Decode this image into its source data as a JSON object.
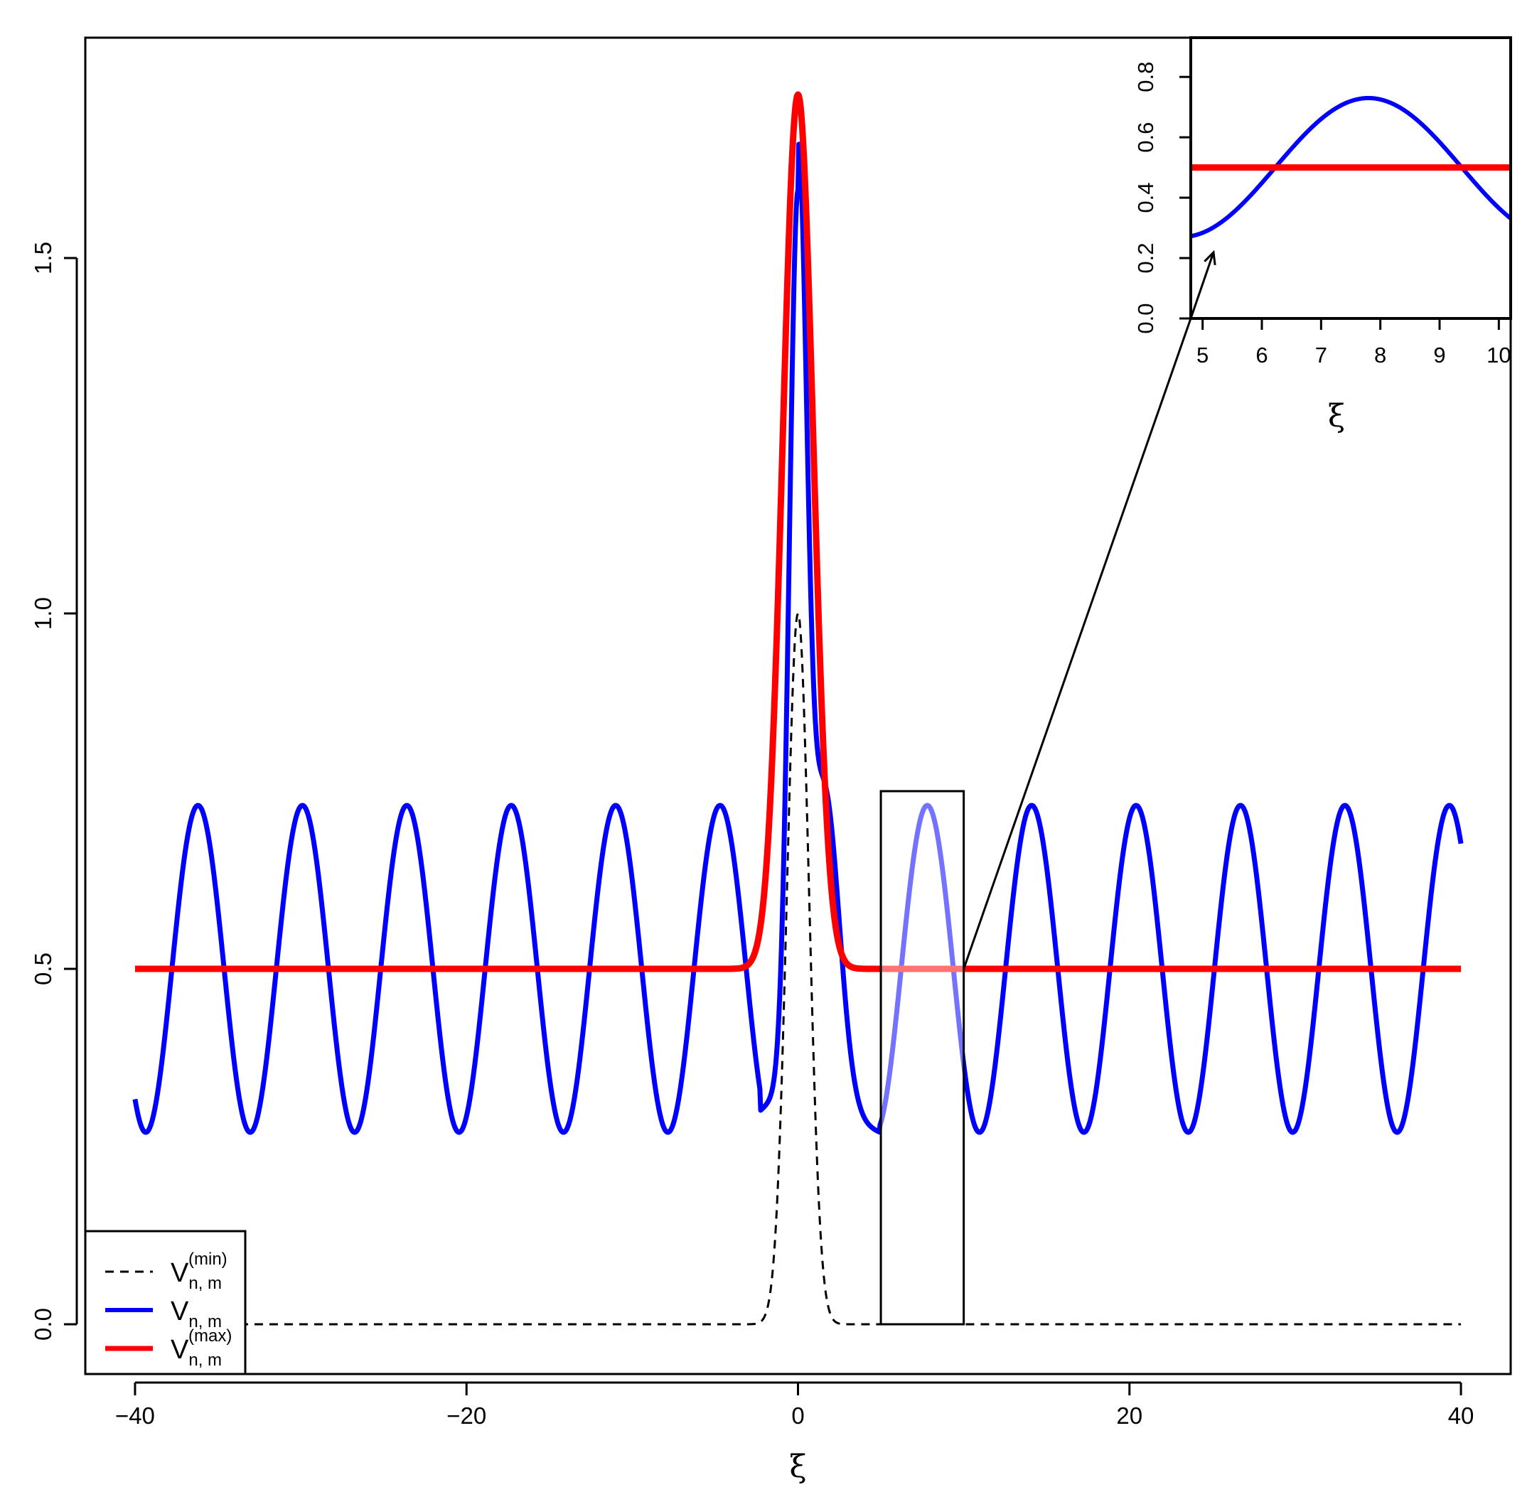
{
  "chart_data": {
    "type": "line",
    "xlabel": "ξ",
    "ylabel": "",
    "xlim": [
      -43,
      43
    ],
    "ylim": [
      -0.07,
      1.81
    ],
    "x_ticks": [
      -40,
      -20,
      0,
      20,
      40
    ],
    "x_tick_labels": [
      "−40",
      "−20",
      "0",
      "20",
      "40"
    ],
    "y_ticks": [
      0.0,
      0.5,
      1.0,
      1.5
    ],
    "y_tick_labels": [
      "0.0",
      "0.5",
      "1.0",
      "1.5"
    ],
    "grid": false,
    "legend_position": "bottom-left",
    "series": [
      {
        "key": "vmin",
        "legend": {
          "base": "V",
          "sub": "n, m",
          "sup": "(min)"
        },
        "color": "#000000",
        "style": "dashed",
        "x": [
          -40,
          -3,
          -2.5,
          -2,
          -1.5,
          -1,
          -0.5,
          0,
          0.5,
          1,
          1.5,
          2,
          2.5,
          3,
          40
        ],
        "y": [
          0,
          0,
          0.004,
          0.02,
          0.08,
          0.25,
          0.65,
          1.0,
          0.65,
          0.25,
          0.08,
          0.02,
          0.004,
          0,
          0
        ]
      },
      {
        "key": "vnm",
        "legend": {
          "base": "V",
          "sub": "n, m",
          "sup": ""
        },
        "color": "#0000ff",
        "style": "solid",
        "x": [
          -40,
          -39.6,
          -36.2,
          -32.9,
          -29.6,
          -26.6,
          -23.3,
          -20.1,
          -16.9,
          -13.8,
          -10.6,
          -7.5,
          -4.8,
          -2.3,
          -1.6,
          -0.8,
          0,
          0.5,
          1,
          2,
          3,
          4,
          5,
          7.8,
          11,
          14.2,
          17.4,
          20.5,
          23.7,
          26.8,
          30,
          33.2,
          36.3,
          39.5,
          40
        ],
        "y": [
          0.32,
          0.27,
          0.73,
          0.27,
          0.73,
          0.27,
          0.73,
          0.27,
          0.73,
          0.27,
          0.73,
          0.27,
          0.73,
          0.3,
          0.5,
          1.0,
          1.52,
          1.3,
          0.82,
          0.7,
          0.5,
          0.35,
          0.27,
          0.73,
          0.27,
          0.73,
          0.27,
          0.73,
          0.27,
          0.73,
          0.27,
          0.73,
          0.27,
          0.73,
          0.68
        ]
      },
      {
        "key": "vmax",
        "legend": {
          "base": "V",
          "sub": "n, m",
          "sup": "(max)"
        },
        "color": "#ff0000",
        "style": "solid",
        "x": [
          -40,
          -3,
          -2.5,
          -2,
          -1.5,
          -1,
          -0.5,
          0,
          0.5,
          1,
          1.5,
          2,
          2.5,
          3,
          40
        ],
        "y": [
          0.5,
          0.5,
          0.51,
          0.56,
          0.73,
          1.0,
          1.45,
          1.73,
          1.45,
          1.0,
          0.73,
          0.56,
          0.51,
          0.5,
          0.5
        ]
      }
    ],
    "highlight_box": {
      "x": [
        5,
        10
      ],
      "y": [
        0,
        0.75
      ]
    },
    "inset": {
      "xlim": [
        4.8,
        10.2
      ],
      "ylim": [
        0,
        0.93
      ],
      "x_ticks": [
        5,
        6,
        7,
        8,
        9,
        10
      ],
      "x_tick_labels": [
        "5",
        "6",
        "7",
        "8",
        "9",
        "10"
      ],
      "y_ticks": [
        0.0,
        0.2,
        0.4,
        0.6,
        0.8
      ],
      "y_tick_labels": [
        "0.0",
        "0.2",
        "0.4",
        "0.6",
        "0.8"
      ],
      "xlabel": "ξ"
    }
  }
}
